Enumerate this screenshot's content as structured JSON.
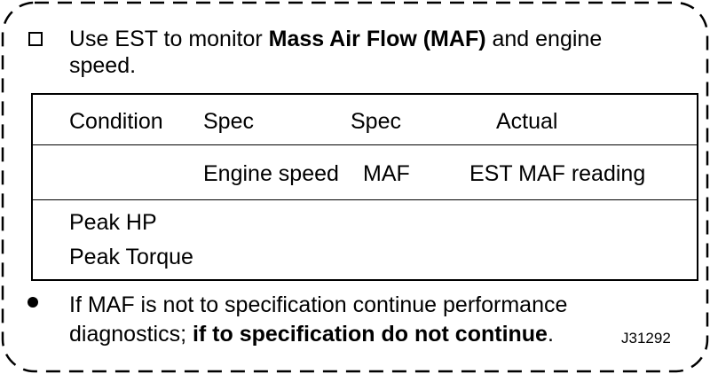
{
  "instruction": {
    "prefix": "Use EST to monitor ",
    "emphasis": "Mass Air Flow (MAF)",
    "suffix": " and engine",
    "line2": "speed."
  },
  "table": {
    "header_row_1": [
      "Condition",
      "Spec",
      "Spec",
      "Actual"
    ],
    "header_row_2": [
      "",
      "Engine speed",
      "MAF",
      "EST MAF reading"
    ],
    "rows": [
      "Peak HP",
      "Peak Torque"
    ]
  },
  "note": {
    "line1": "If MAF is not to specification continue performance",
    "line2_prefix": "diagnostics; ",
    "line2_emphasis": "if to specification do not continue",
    "line2_suffix": "."
  },
  "figure_id": "J31292"
}
